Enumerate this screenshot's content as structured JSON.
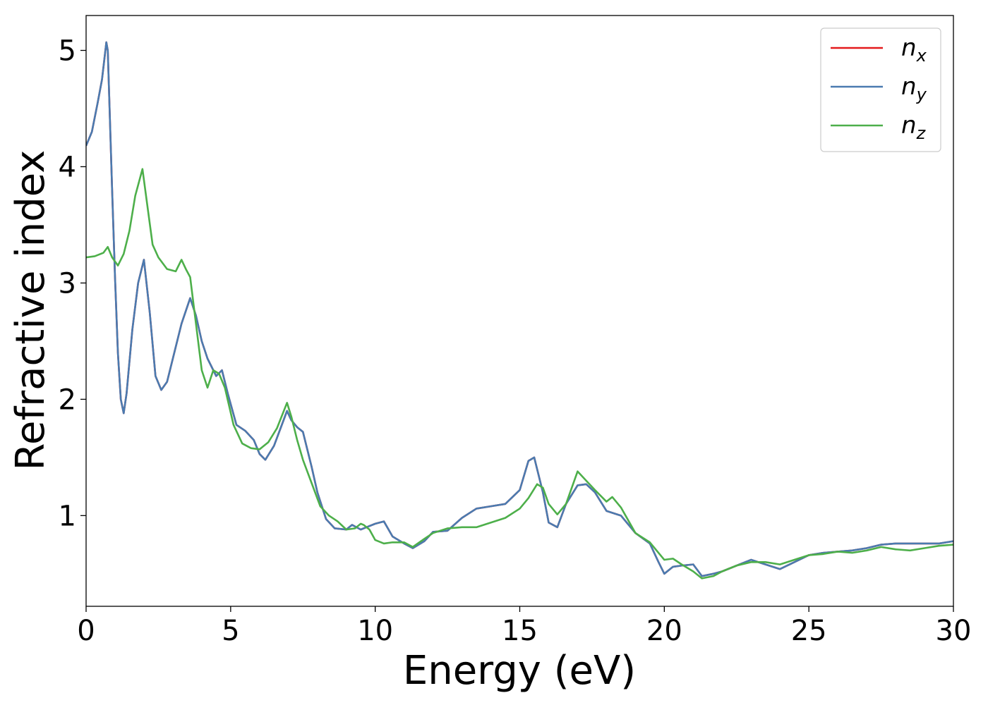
{
  "chart_data": {
    "type": "line",
    "title": "",
    "xlabel": "Energy (eV)",
    "ylabel": "Refractive index",
    "xlim": [
      0,
      30
    ],
    "ylim": [
      0.22,
      5.3
    ],
    "xticks": [
      0,
      5,
      10,
      15,
      20,
      25,
      30
    ],
    "yticks": [
      1,
      2,
      3,
      4,
      5
    ],
    "grid": false,
    "legend_position": "top-right",
    "series": [
      {
        "name": "n",
        "subscript": "x",
        "color": "#e41a1c",
        "x": [
          0,
          0.2,
          0.4,
          0.55,
          0.7,
          0.75,
          0.8,
          0.9,
          1.0,
          1.1,
          1.2,
          1.3,
          1.4,
          1.6,
          1.8,
          2.0,
          2.2,
          2.4,
          2.6,
          2.8,
          3.0,
          3.3,
          3.6,
          3.8,
          4.0,
          4.2,
          4.5,
          4.7,
          4.9,
          5.2,
          5.5,
          5.8,
          6.0,
          6.2,
          6.5,
          6.8,
          6.95,
          7.1,
          7.3,
          7.5,
          7.8,
          8.0,
          8.3,
          8.6,
          9.0,
          9.2,
          9.5,
          9.7,
          10.0,
          10.3,
          10.6,
          11.0,
          11.3,
          11.7,
          12.0,
          12.5,
          13.0,
          13.5,
          14.0,
          14.5,
          15.0,
          15.3,
          15.5,
          15.8,
          16.0,
          16.3,
          16.6,
          17.0,
          17.3,
          17.6,
          18.0,
          18.5,
          19.0,
          19.5,
          19.8,
          20.0,
          20.3,
          20.6,
          21.0,
          21.3,
          21.7,
          22.0,
          22.5,
          23.0,
          23.5,
          24.0,
          24.5,
          25.0,
          25.5,
          26.0,
          26.5,
          27.0,
          27.5,
          28.0,
          28.5,
          29.0,
          29.5,
          30.0
        ],
        "y": [
          4.18,
          4.3,
          4.55,
          4.75,
          5.07,
          5.0,
          4.6,
          3.8,
          3.05,
          2.4,
          2.0,
          1.88,
          2.05,
          2.6,
          3.0,
          3.2,
          2.75,
          2.2,
          2.08,
          2.15,
          2.35,
          2.65,
          2.87,
          2.72,
          2.5,
          2.35,
          2.2,
          2.25,
          2.05,
          1.78,
          1.73,
          1.65,
          1.53,
          1.48,
          1.6,
          1.8,
          1.9,
          1.82,
          1.76,
          1.72,
          1.42,
          1.2,
          0.97,
          0.89,
          0.88,
          0.92,
          0.88,
          0.9,
          0.93,
          0.95,
          0.82,
          0.76,
          0.72,
          0.78,
          0.86,
          0.87,
          0.98,
          1.06,
          1.08,
          1.1,
          1.22,
          1.47,
          1.5,
          1.2,
          0.94,
          0.9,
          1.1,
          1.26,
          1.27,
          1.2,
          1.04,
          1.0,
          0.85,
          0.76,
          0.6,
          0.5,
          0.56,
          0.57,
          0.58,
          0.48,
          0.5,
          0.52,
          0.57,
          0.62,
          0.58,
          0.54,
          0.6,
          0.66,
          0.68,
          0.69,
          0.7,
          0.72,
          0.75,
          0.76,
          0.76,
          0.76,
          0.76,
          0.78
        ]
      },
      {
        "name": "n",
        "subscript": "y",
        "color": "#4a7bb0",
        "x": [
          0,
          0.2,
          0.4,
          0.55,
          0.7,
          0.75,
          0.8,
          0.9,
          1.0,
          1.1,
          1.2,
          1.3,
          1.4,
          1.6,
          1.8,
          2.0,
          2.2,
          2.4,
          2.6,
          2.8,
          3.0,
          3.3,
          3.6,
          3.8,
          4.0,
          4.2,
          4.5,
          4.7,
          4.9,
          5.2,
          5.5,
          5.8,
          6.0,
          6.2,
          6.5,
          6.8,
          6.95,
          7.1,
          7.3,
          7.5,
          7.8,
          8.0,
          8.3,
          8.6,
          9.0,
          9.2,
          9.5,
          9.7,
          10.0,
          10.3,
          10.6,
          11.0,
          11.3,
          11.7,
          12.0,
          12.5,
          13.0,
          13.5,
          14.0,
          14.5,
          15.0,
          15.3,
          15.5,
          15.8,
          16.0,
          16.3,
          16.6,
          17.0,
          17.3,
          17.6,
          18.0,
          18.5,
          19.0,
          19.5,
          19.8,
          20.0,
          20.3,
          20.6,
          21.0,
          21.3,
          21.7,
          22.0,
          22.5,
          23.0,
          23.5,
          24.0,
          24.5,
          25.0,
          25.5,
          26.0,
          26.5,
          27.0,
          27.5,
          28.0,
          28.5,
          29.0,
          29.5,
          30.0
        ],
        "y": [
          4.18,
          4.3,
          4.55,
          4.75,
          5.07,
          5.0,
          4.6,
          3.8,
          3.05,
          2.4,
          2.0,
          1.88,
          2.05,
          2.6,
          3.0,
          3.2,
          2.75,
          2.2,
          2.08,
          2.15,
          2.35,
          2.65,
          2.87,
          2.72,
          2.5,
          2.35,
          2.2,
          2.25,
          2.05,
          1.78,
          1.73,
          1.65,
          1.53,
          1.48,
          1.6,
          1.8,
          1.9,
          1.82,
          1.76,
          1.72,
          1.42,
          1.2,
          0.97,
          0.89,
          0.88,
          0.92,
          0.88,
          0.9,
          0.93,
          0.95,
          0.82,
          0.76,
          0.72,
          0.78,
          0.86,
          0.87,
          0.98,
          1.06,
          1.08,
          1.1,
          1.22,
          1.47,
          1.5,
          1.2,
          0.94,
          0.9,
          1.1,
          1.26,
          1.27,
          1.2,
          1.04,
          1.0,
          0.85,
          0.76,
          0.6,
          0.5,
          0.56,
          0.57,
          0.58,
          0.48,
          0.5,
          0.52,
          0.57,
          0.62,
          0.58,
          0.54,
          0.6,
          0.66,
          0.68,
          0.69,
          0.7,
          0.72,
          0.75,
          0.76,
          0.76,
          0.76,
          0.76,
          0.78
        ]
      },
      {
        "name": "n",
        "subscript": "z",
        "color": "#4daf4a",
        "x": [
          0,
          0.3,
          0.6,
          0.75,
          0.9,
          1.1,
          1.3,
          1.5,
          1.7,
          1.95,
          2.1,
          2.3,
          2.5,
          2.8,
          3.1,
          3.3,
          3.45,
          3.6,
          3.8,
          4.0,
          4.2,
          4.4,
          4.6,
          4.8,
          5.1,
          5.4,
          5.7,
          6.0,
          6.3,
          6.6,
          6.95,
          7.1,
          7.3,
          7.5,
          7.8,
          8.1,
          8.4,
          8.7,
          9.0,
          9.3,
          9.5,
          9.6,
          9.8,
          10.0,
          10.3,
          10.6,
          11.0,
          11.3,
          11.7,
          12.0,
          12.5,
          13.0,
          13.5,
          14.0,
          14.5,
          15.0,
          15.3,
          15.6,
          15.8,
          16.0,
          16.3,
          16.6,
          17.0,
          17.3,
          17.6,
          18.0,
          18.2,
          18.5,
          19.0,
          19.5,
          20.0,
          20.3,
          20.6,
          21.0,
          21.3,
          21.7,
          22.0,
          22.5,
          23.0,
          23.5,
          24.0,
          24.5,
          25.0,
          25.5,
          26.0,
          26.5,
          27.0,
          27.5,
          28.0,
          28.5,
          29.0,
          29.5,
          30.0
        ],
        "y": [
          3.22,
          3.23,
          3.26,
          3.31,
          3.22,
          3.15,
          3.25,
          3.45,
          3.75,
          3.98,
          3.7,
          3.33,
          3.22,
          3.12,
          3.1,
          3.2,
          3.12,
          3.05,
          2.65,
          2.25,
          2.1,
          2.25,
          2.22,
          2.1,
          1.78,
          1.62,
          1.58,
          1.57,
          1.63,
          1.75,
          1.97,
          1.85,
          1.65,
          1.48,
          1.28,
          1.08,
          1.0,
          0.95,
          0.88,
          0.89,
          0.93,
          0.92,
          0.88,
          0.79,
          0.76,
          0.77,
          0.77,
          0.73,
          0.8,
          0.85,
          0.89,
          0.9,
          0.9,
          0.94,
          0.98,
          1.06,
          1.15,
          1.27,
          1.24,
          1.1,
          1.01,
          1.1,
          1.38,
          1.3,
          1.22,
          1.12,
          1.16,
          1.07,
          0.85,
          0.77,
          0.62,
          0.63,
          0.58,
          0.52,
          0.46,
          0.48,
          0.52,
          0.57,
          0.6,
          0.6,
          0.58,
          0.62,
          0.66,
          0.67,
          0.69,
          0.68,
          0.7,
          0.73,
          0.71,
          0.7,
          0.72,
          0.74,
          0.75
        ]
      }
    ]
  }
}
